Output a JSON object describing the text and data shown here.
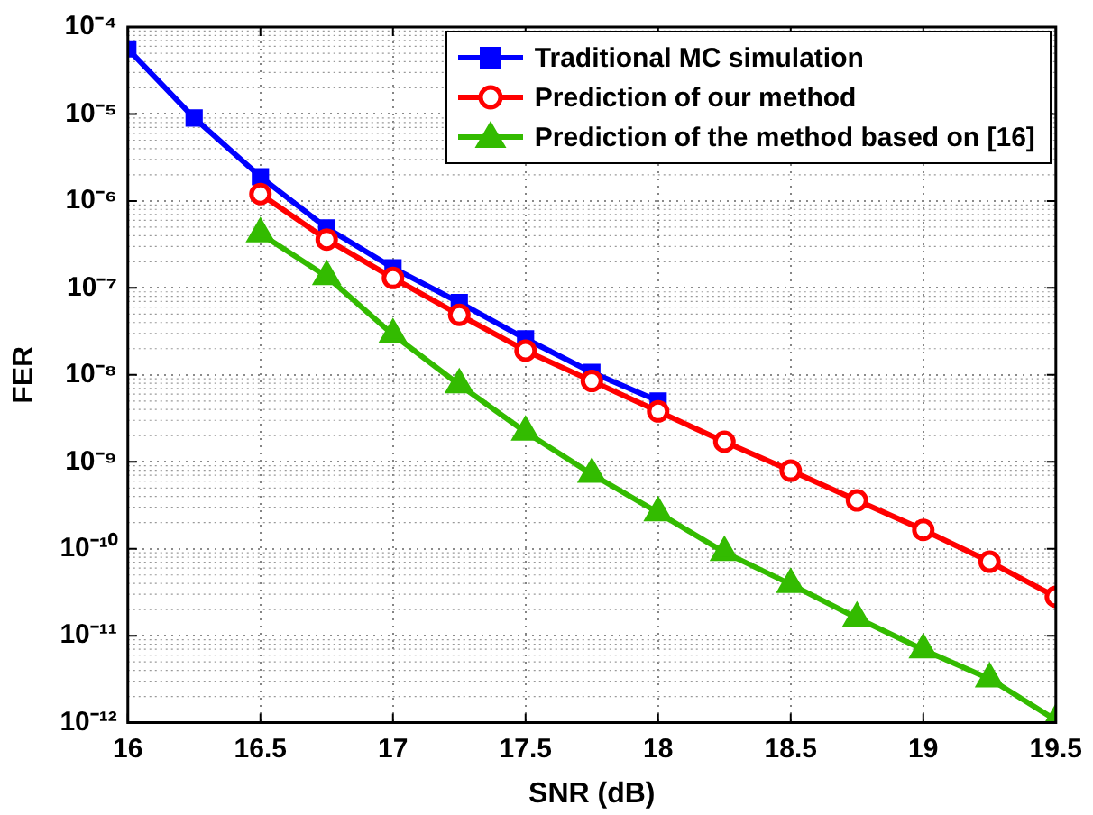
{
  "chart_data": {
    "type": "line",
    "xlabel": "SNR (dB)",
    "ylabel": "FER",
    "log": "y",
    "grid": true,
    "legend": "top right",
    "xlim": [
      16,
      19.5
    ],
    "xticks": [
      16,
      16.5,
      17,
      17.5,
      18,
      18.5,
      19,
      19.5
    ],
    "ylim": [
      1e-12,
      0.0001
    ],
    "yticks": [
      {
        "value": 1e-12,
        "label": "10⁻¹²"
      },
      {
        "value": 1e-11,
        "label": "10⁻¹¹"
      },
      {
        "value": 1e-10,
        "label": "10⁻¹⁰"
      },
      {
        "value": 1e-09,
        "label": "10⁻⁹"
      },
      {
        "value": 1e-08,
        "label": "10⁻⁸"
      },
      {
        "value": 1e-07,
        "label": "10⁻⁷"
      },
      {
        "value": 1e-06,
        "label": "10⁻⁶"
      },
      {
        "value": 1e-05,
        "label": "10⁻⁵"
      },
      {
        "value": 0.0001,
        "label": "10⁻⁴"
      }
    ],
    "series": [
      {
        "name": "Traditional MC simulation",
        "color": "#0000ff",
        "marker": "square",
        "x": [
          16,
          16.25,
          16.5,
          16.75,
          17,
          17.25,
          17.5,
          17.75,
          18
        ],
        "values": [
          5.6e-05,
          9e-06,
          1.9e-06,
          4.9e-07,
          1.7e-07,
          6.8e-08,
          2.6e-08,
          1.07e-08,
          5e-09
        ]
      },
      {
        "name": "Prediction of our method",
        "color": "#ff0000",
        "marker": "circle",
        "x": [
          16.5,
          16.75,
          17,
          17.25,
          17.5,
          17.75,
          18,
          18.25,
          18.5,
          18.75,
          19,
          19.25,
          19.5
        ],
        "values": [
          1.2e-06,
          3.6e-07,
          1.3e-07,
          4.9e-08,
          1.9e-08,
          8.5e-09,
          3.8e-09,
          1.7e-09,
          7.9e-10,
          3.6e-10,
          1.65e-10,
          7.1e-11,
          2.8e-11
        ]
      },
      {
        "name": "Prediction of the method based on [16]",
        "color": "#33bb00",
        "marker": "triangle",
        "x": [
          16.5,
          16.75,
          17,
          17.25,
          17.5,
          17.75,
          18,
          18.25,
          18.5,
          18.75,
          19,
          19.25,
          19.5
        ],
        "values": [
          4.2e-07,
          1.35e-07,
          2.9e-08,
          7.7e-09,
          2.2e-09,
          7.2e-10,
          2.6e-10,
          9.1e-11,
          3.9e-11,
          1.6e-11,
          6.9e-12,
          3.2e-12,
          1.07e-12
        ]
      }
    ]
  }
}
